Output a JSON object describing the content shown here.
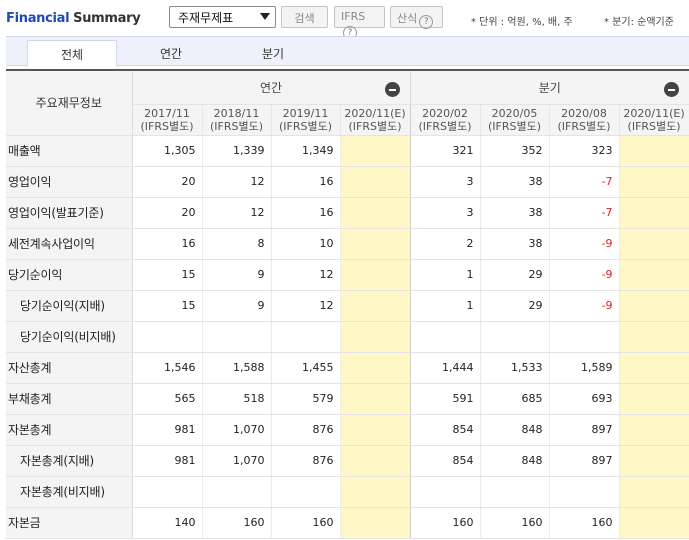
{
  "header": {
    "title_part1": "Financial",
    "title_part2": "Summary",
    "select_value": "주재무제표",
    "search_label": "검색",
    "ifrs_label": "IFRS",
    "formula_label": "산식",
    "help_glyph": "?",
    "unit_note": "* 단위 : 억원, %, 배, 주",
    "period_note": "* 분기: 순액기준"
  },
  "tabs": [
    {
      "label": "전체",
      "active": true
    },
    {
      "label": "연간",
      "active": false
    },
    {
      "label": "분기",
      "active": false
    }
  ],
  "table": {
    "label_header": "주요재무정보",
    "groups": {
      "annual": "연간",
      "quarterly": "분기"
    },
    "columns": [
      {
        "period": "2017/11",
        "basis": "(IFRS별도)",
        "estimate": false
      },
      {
        "period": "2018/11",
        "basis": "(IFRS별도)",
        "estimate": false
      },
      {
        "period": "2019/11",
        "basis": "(IFRS별도)",
        "estimate": false
      },
      {
        "period": "2020/11(E)",
        "basis": "(IFRS별도)",
        "estimate": true
      },
      {
        "period": "2020/02",
        "basis": "(IFRS별도)",
        "estimate": false
      },
      {
        "period": "2020/05",
        "basis": "(IFRS별도)",
        "estimate": false
      },
      {
        "period": "2020/08",
        "basis": "(IFRS별도)",
        "estimate": false
      },
      {
        "period": "2020/11(E)",
        "basis": "(IFRS별도)",
        "estimate": true
      }
    ],
    "rows": [
      {
        "label": "매출액",
        "sub": false,
        "values": [
          "1,305",
          "1,339",
          "1,349",
          "",
          "321",
          "352",
          "323",
          ""
        ]
      },
      {
        "label": "영업이익",
        "sub": false,
        "values": [
          "20",
          "12",
          "16",
          "",
          "3",
          "38",
          "-7",
          ""
        ]
      },
      {
        "label": "영업이익(발표기준)",
        "sub": false,
        "values": [
          "20",
          "12",
          "16",
          "",
          "3",
          "38",
          "-7",
          ""
        ]
      },
      {
        "label": "세전계속사업이익",
        "sub": false,
        "values": [
          "16",
          "8",
          "10",
          "",
          "2",
          "38",
          "-9",
          ""
        ]
      },
      {
        "label": "당기순이익",
        "sub": false,
        "values": [
          "15",
          "9",
          "12",
          "",
          "1",
          "29",
          "-9",
          ""
        ]
      },
      {
        "label": "당기순이익(지배)",
        "sub": true,
        "values": [
          "15",
          "9",
          "12",
          "",
          "1",
          "29",
          "-9",
          ""
        ]
      },
      {
        "label": "당기순이익(비지배)",
        "sub": true,
        "values": [
          "",
          "",
          "",
          "",
          "",
          "",
          "",
          ""
        ]
      },
      {
        "label": "자산총계",
        "sub": false,
        "values": [
          "1,546",
          "1,588",
          "1,455",
          "",
          "1,444",
          "1,533",
          "1,589",
          ""
        ]
      },
      {
        "label": "부채총계",
        "sub": false,
        "values": [
          "565",
          "518",
          "579",
          "",
          "591",
          "685",
          "693",
          ""
        ]
      },
      {
        "label": "자본총계",
        "sub": false,
        "values": [
          "981",
          "1,070",
          "876",
          "",
          "854",
          "848",
          "897",
          ""
        ]
      },
      {
        "label": "자본총계(지배)",
        "sub": true,
        "values": [
          "981",
          "1,070",
          "876",
          "",
          "854",
          "848",
          "897",
          ""
        ]
      },
      {
        "label": "자본총계(비지배)",
        "sub": true,
        "values": [
          "",
          "",
          "",
          "",
          "",
          "",
          "",
          ""
        ]
      },
      {
        "label": "자본금",
        "sub": false,
        "values": [
          "140",
          "160",
          "160",
          "",
          "160",
          "160",
          "160",
          ""
        ]
      }
    ]
  },
  "colors": {
    "title_blue": "#1e49b8",
    "negative_red": "#e02020",
    "estimate_bg": "#fff8c6",
    "header_bg": "#f4f4f4"
  }
}
